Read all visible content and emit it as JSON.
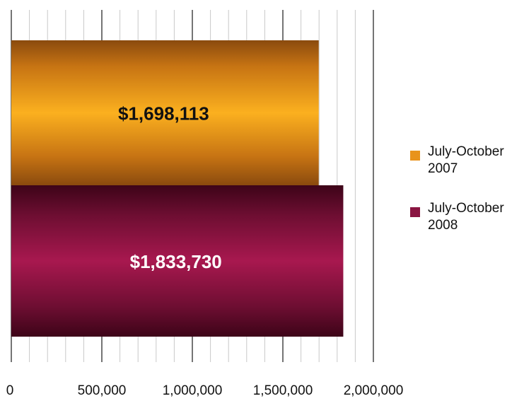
{
  "chart_data": {
    "type": "bar",
    "orientation": "horizontal",
    "title": "",
    "xlabel": "",
    "ylabel": "",
    "xlim": [
      0,
      2000000
    ],
    "x_ticks": [
      "0",
      "500,000",
      "1,000,000",
      "1,500,000",
      "2,000,000"
    ],
    "grid": true,
    "legend_position": "right",
    "series": [
      {
        "name_line1": "July-October",
        "name_line2": "2007",
        "value": 1698113,
        "data_label": "$1,698,113",
        "color": "#e8931c"
      },
      {
        "name_line1": "July-October",
        "name_line2": "2008",
        "value": 1833730,
        "data_label": "$1,833,730",
        "color": "#8a1542"
      }
    ]
  }
}
